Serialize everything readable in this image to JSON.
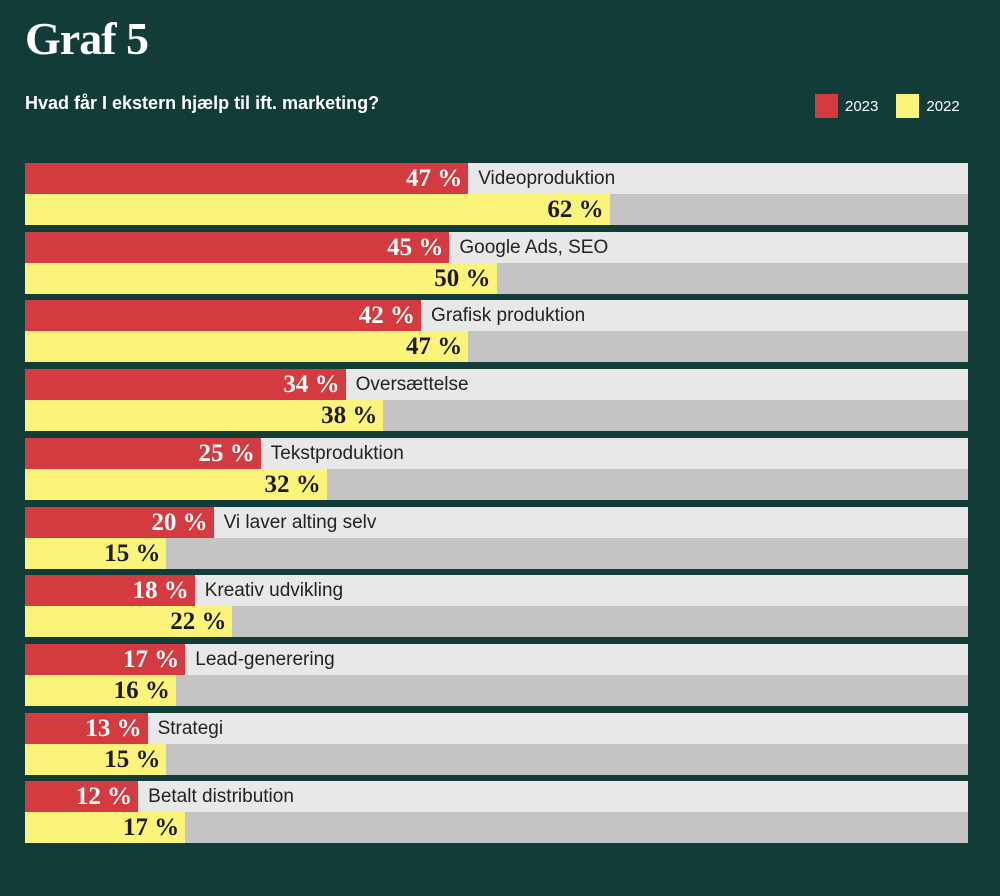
{
  "background_color": "#123c37",
  "chart_data": {
    "type": "bar",
    "orientation": "horizontal",
    "title": "Graf 5",
    "subtitle": "Hvad får I ekstern hjælp til ift. marketing?",
    "categories": [
      "Videoproduktion",
      "Google Ads, SEO",
      "Grafisk produktion",
      "Oversættelse",
      "Tekstproduktion",
      "Vi laver alting selv",
      "Kreativ udvikling",
      "Lead-generering",
      "Strategi",
      "Betalt distribution"
    ],
    "series": [
      {
        "name": "2023",
        "color": "#d33b41",
        "label_color": "#ffffff",
        "values": [
          47,
          45,
          42,
          34,
          25,
          20,
          18,
          17,
          13,
          12
        ]
      },
      {
        "name": "2022",
        "color": "#fbf37a",
        "label_color": "#1c1c1c",
        "values": [
          62,
          50,
          47,
          38,
          32,
          15,
          22,
          16,
          15,
          17
        ]
      }
    ],
    "track_colors": [
      "#e8e8e8",
      "#c4c4c4"
    ],
    "value_suffix": " %",
    "xlim": [
      0,
      100
    ],
    "grid": false,
    "legend_position": "top-right"
  }
}
